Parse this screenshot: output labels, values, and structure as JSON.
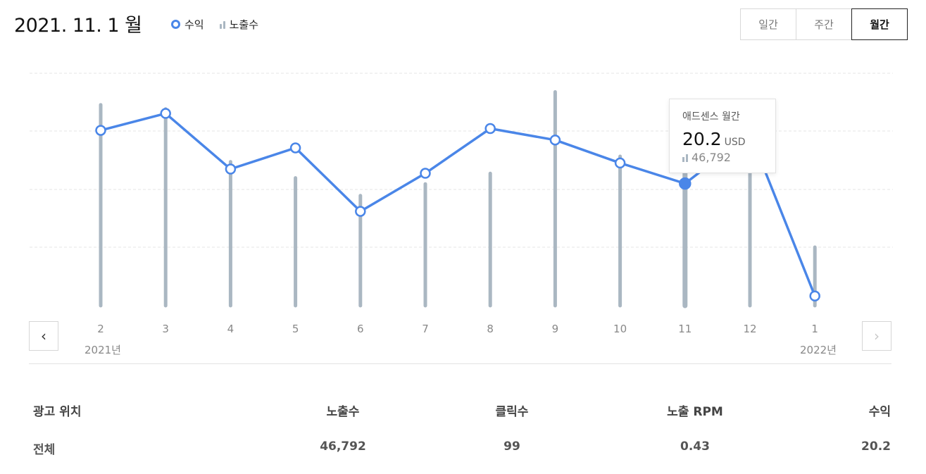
{
  "header": {
    "title": "2021. 11. 1 월",
    "legend_revenue": "수익",
    "legend_impressions": "노출수"
  },
  "period_tabs": [
    {
      "label": "일간",
      "active": false
    },
    {
      "label": "주간",
      "active": false
    },
    {
      "label": "월간",
      "active": true
    }
  ],
  "colors": {
    "line": "#4a86e8",
    "bar": "#aab7c2",
    "grid": "#e4e4e4"
  },
  "icons": {
    "prev": "chevron-left-icon",
    "next": "chevron-right-icon"
  },
  "nav": {
    "prev_glyph": "‹",
    "next_glyph": "›"
  },
  "x_axis": {
    "start_year": "2021년",
    "end_year": "2022년"
  },
  "chart_data": {
    "type": "line",
    "categories": [
      "2",
      "3",
      "4",
      "5",
      "6",
      "7",
      "8",
      "9",
      "10",
      "11",
      "12",
      "1"
    ],
    "series": [
      {
        "name": "수익",
        "kind": "line",
        "values": [
          29.0,
          31.8,
          22.6,
          26.1,
          15.6,
          21.9,
          29.3,
          27.4,
          23.6,
          20.2,
          28.5,
          1.6
        ]
      },
      {
        "name": "노출수",
        "kind": "bar",
        "values": [
          67000,
          65600,
          48000,
          42600,
          36700,
          40600,
          44100,
          71300,
          49800,
          46792,
          63000,
          19500
        ]
      }
    ],
    "selected_index": 9,
    "grid": true
  },
  "tooltip": {
    "title": "애드센스 월간",
    "value": "20.2",
    "unit": "USD",
    "impressions": "46,792"
  },
  "table": {
    "headers": {
      "location": "광고 위치",
      "impressions": "노출수",
      "clicks": "클릭수",
      "rpm": "노출 RPM",
      "revenue": "수익"
    },
    "rows": [
      {
        "location": "전체",
        "impressions": "46,792",
        "clicks": "99",
        "rpm": "0.43",
        "revenue": "20.2"
      }
    ]
  }
}
